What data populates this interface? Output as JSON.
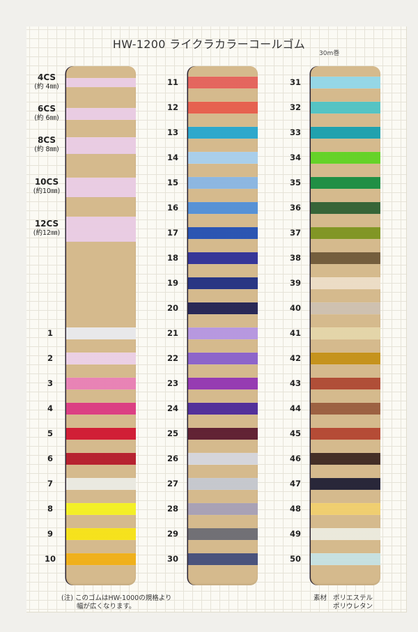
{
  "title": "HW-1200 ライクラカラーコールゴム",
  "roll_length": "30m巻",
  "board_color": "#d5ba8d",
  "size_samples": [
    {
      "code": "4CS",
      "width": "(約 4㎜)",
      "color": "#efcfe8"
    },
    {
      "code": "6CS",
      "width": "(約 6㎜)",
      "color": "#efcfe8"
    },
    {
      "code": "8CS",
      "width": "(約 8㎜)",
      "color": "#efcfe8"
    },
    {
      "code": "10CS",
      "width": "(約10㎜)",
      "color": "#efcfe8"
    },
    {
      "code": "12CS",
      "width": "(約12㎜)",
      "color": "#efcfe8"
    }
  ],
  "columns": [
    [
      {
        "no": "1",
        "color": "#eeeef0"
      },
      {
        "no": "2",
        "color": "#f1d3ea"
      },
      {
        "no": "3",
        "color": "#ee7fb6"
      },
      {
        "no": "4",
        "color": "#e0357f"
      },
      {
        "no": "5",
        "color": "#d4112a"
      },
      {
        "no": "6",
        "color": "#b81524"
      },
      {
        "no": "7",
        "color": "#f0efe6"
      },
      {
        "no": "8",
        "color": "#fbf61a"
      },
      {
        "no": "9",
        "color": "#fde70f"
      },
      {
        "no": "10",
        "color": "#f6b10e"
      }
    ],
    [
      {
        "no": "11",
        "color": "#ea5f57"
      },
      {
        "no": "12",
        "color": "#ec5a47"
      },
      {
        "no": "13",
        "color": "#22a8cf"
      },
      {
        "no": "14",
        "color": "#a9d2f0"
      },
      {
        "no": "15",
        "color": "#8ab8e6"
      },
      {
        "no": "16",
        "color": "#4f8fda"
      },
      {
        "no": "17",
        "color": "#1f4db3"
      },
      {
        "no": "18",
        "color": "#2b2a96"
      },
      {
        "no": "19",
        "color": "#1c2a80"
      },
      {
        "no": "20",
        "color": "#1d1c4e"
      },
      {
        "no": "21",
        "color": "#b896e4"
      },
      {
        "no": "22",
        "color": "#8a5ecd"
      },
      {
        "no": "23",
        "color": "#9431b3"
      },
      {
        "no": "24",
        "color": "#4a2499"
      },
      {
        "no": "25",
        "color": "#5a1528"
      },
      {
        "no": "26",
        "color": "#d9d9df"
      },
      {
        "no": "27",
        "color": "#c8cbd1"
      },
      {
        "no": "28",
        "color": "#a9a0b6"
      },
      {
        "no": "29",
        "color": "#6b6a70"
      },
      {
        "no": "30",
        "color": "#414a78"
      }
    ],
    [
      {
        "no": "31",
        "color": "#93dbec"
      },
      {
        "no": "32",
        "color": "#4cc6c6"
      },
      {
        "no": "33",
        "color": "#13a0ae"
      },
      {
        "no": "34",
        "color": "#5fd61c"
      },
      {
        "no": "35",
        "color": "#128c3a"
      },
      {
        "no": "36",
        "color": "#2b5e2c"
      },
      {
        "no": "37",
        "color": "#7d9418"
      },
      {
        "no": "38",
        "color": "#6e5632"
      },
      {
        "no": "39",
        "color": "#f2e1c8"
      },
      {
        "no": "40",
        "color": "#d2c3b0"
      },
      {
        "no": "41",
        "color": "#e9d9a9"
      },
      {
        "no": "42",
        "color": "#c8910f"
      },
      {
        "no": "43",
        "color": "#b0452c"
      },
      {
        "no": "44",
        "color": "#9b5a38"
      },
      {
        "no": "45",
        "color": "#b6422a"
      },
      {
        "no": "46",
        "color": "#3a2219"
      },
      {
        "no": "47",
        "color": "#1c1a2e"
      },
      {
        "no": "48",
        "color": "#f6d26a"
      },
      {
        "no": "49",
        "color": "#f1efe0"
      },
      {
        "no": "50",
        "color": "#c9e6e6"
      }
    ]
  ],
  "note": {
    "prefix": "(注)",
    "line1": "このゴムはHW-1000の規格より",
    "line2": "幅が広くなります。"
  },
  "material": {
    "label": "素材",
    "value1": "ポリエステル",
    "value2": "ポリウレタン"
  }
}
